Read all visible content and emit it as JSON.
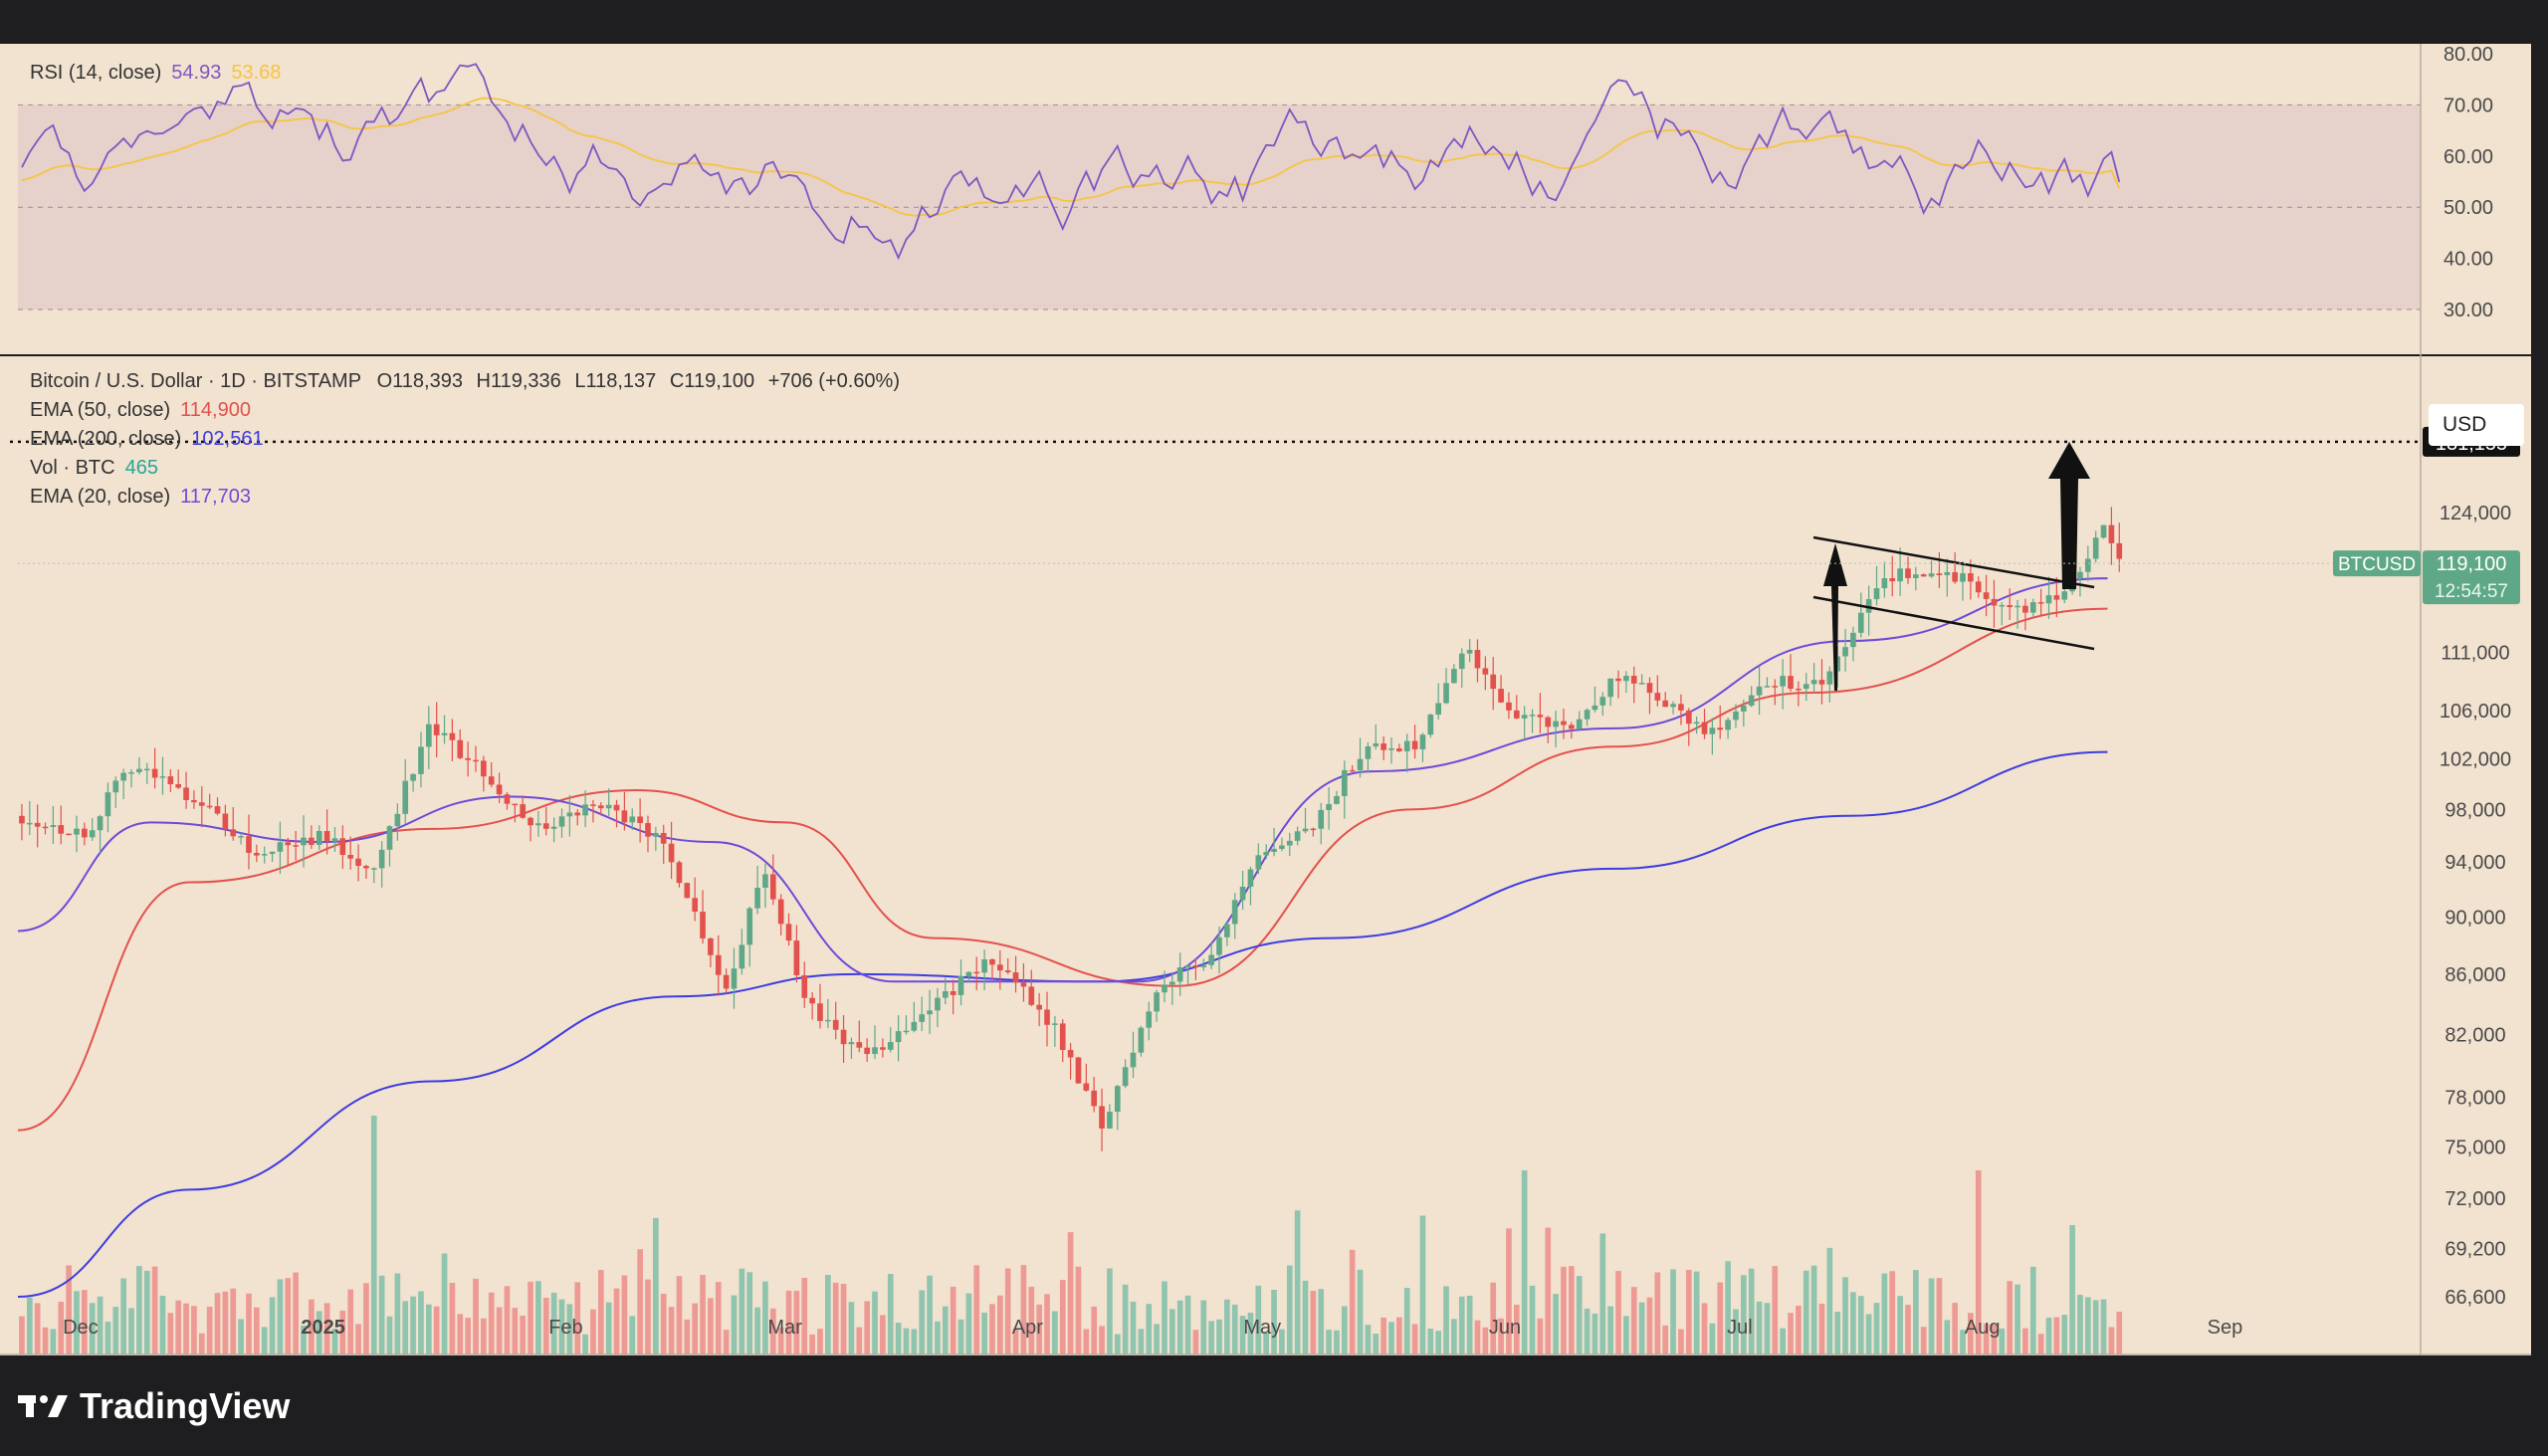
{
  "rsi": {
    "label": "RSI (14, close)",
    "value1": "54.93",
    "value2": "53.68",
    "axis_ticks": [
      "80.00",
      "70.00",
      "60.00",
      "50.00",
      "40.00",
      "30.00"
    ]
  },
  "main_legend": {
    "symbol": "Bitcoin / U.S. Dollar · 1D · BITSTAMP",
    "open": "O118,393",
    "high": "H119,336",
    "low": "L118,137",
    "close": "C119,100",
    "change": "+706 (+0.60%)",
    "ema50_label": "EMA (50, close)",
    "ema50_value": "114,900",
    "ema200_label": "EMA (200, close)",
    "ema200_value": "102,561",
    "vol_label": "Vol · BTC",
    "vol_value": "465",
    "ema20_label": "EMA (20, close)",
    "ema20_value": "117,703"
  },
  "price_axis": {
    "currency": "USD",
    "ticks": [
      "124,000",
      "111,000",
      "106,000",
      "102,000",
      "98,000",
      "94,000",
      "90,000",
      "86,000",
      "82,000",
      "78,000",
      "75,000",
      "72,000",
      "69,200",
      "66,600"
    ],
    "target_label": "131,155",
    "last_symbol": "BTCUSD",
    "last_price": "119,100",
    "countdown": "12:54:57"
  },
  "time_axis": [
    "Dec",
    "2025",
    "Feb",
    "Mar",
    "Apr",
    "May",
    "Jun",
    "Jul",
    "Aug",
    "Sep"
  ],
  "brand": "TradingView",
  "colors": {
    "bg": "#f2e2d0",
    "up": "#5fa887",
    "down": "#e3514c",
    "ema50": "#e3514c",
    "ema200": "#3d3de0",
    "ema20": "#6c4bd8",
    "rsi": "#7e57c2",
    "rsi_ma": "#f5c542"
  },
  "chart_data": {
    "type": "candlestick",
    "title": "Bitcoin / U.S. Dollar · 1D · BITSTAMP",
    "x_range": [
      "2024-11-23",
      "2025-09-26"
    ],
    "last": {
      "open": 118393,
      "high": 119336,
      "low": 118137,
      "close": 119100,
      "volume": 465
    },
    "target_price": 131155,
    "ema_close": [
      {
        "name": "EMA (50, close)",
        "dates": [
          "2024-11-23",
          "2024-12-15",
          "2025-01-15",
          "2025-02-10",
          "2025-03-01",
          "2025-03-20",
          "2025-04-20",
          "2025-05-20",
          "2025-06-15",
          "2025-07-10",
          "2025-08-17"
        ],
        "values": [
          76000,
          92500,
          96500,
          99500,
          97000,
          88500,
          85200,
          98000,
          103000,
          107500,
          114900
        ]
      },
      {
        "name": "EMA (200, close)",
        "dates": [
          "2024-11-23",
          "2024-12-15",
          "2025-01-15",
          "2025-02-15",
          "2025-03-10",
          "2025-04-10",
          "2025-05-10",
          "2025-06-15",
          "2025-07-15",
          "2025-08-17"
        ],
        "values": [
          66600,
          72500,
          79000,
          84500,
          86000,
          85500,
          88500,
          93500,
          97500,
          102561
        ]
      },
      {
        "name": "EMA (20, close)",
        "dates": [
          "2024-11-23",
          "2024-12-10",
          "2025-01-01",
          "2025-01-25",
          "2025-02-20",
          "2025-03-15",
          "2025-04-15",
          "2025-05-15",
          "2025-06-15",
          "2025-07-15",
          "2025-08-17"
        ],
        "values": [
          89000,
          97000,
          95500,
          99000,
          95500,
          85500,
          85500,
          101000,
          104500,
          112000,
          117703
        ]
      }
    ],
    "rsi": {
      "name": "RSI (14, close)",
      "range": [
        25,
        80
      ],
      "bands": [
        30,
        50,
        70
      ],
      "last": 54.93,
      "ma_last": 53.68
    }
  }
}
